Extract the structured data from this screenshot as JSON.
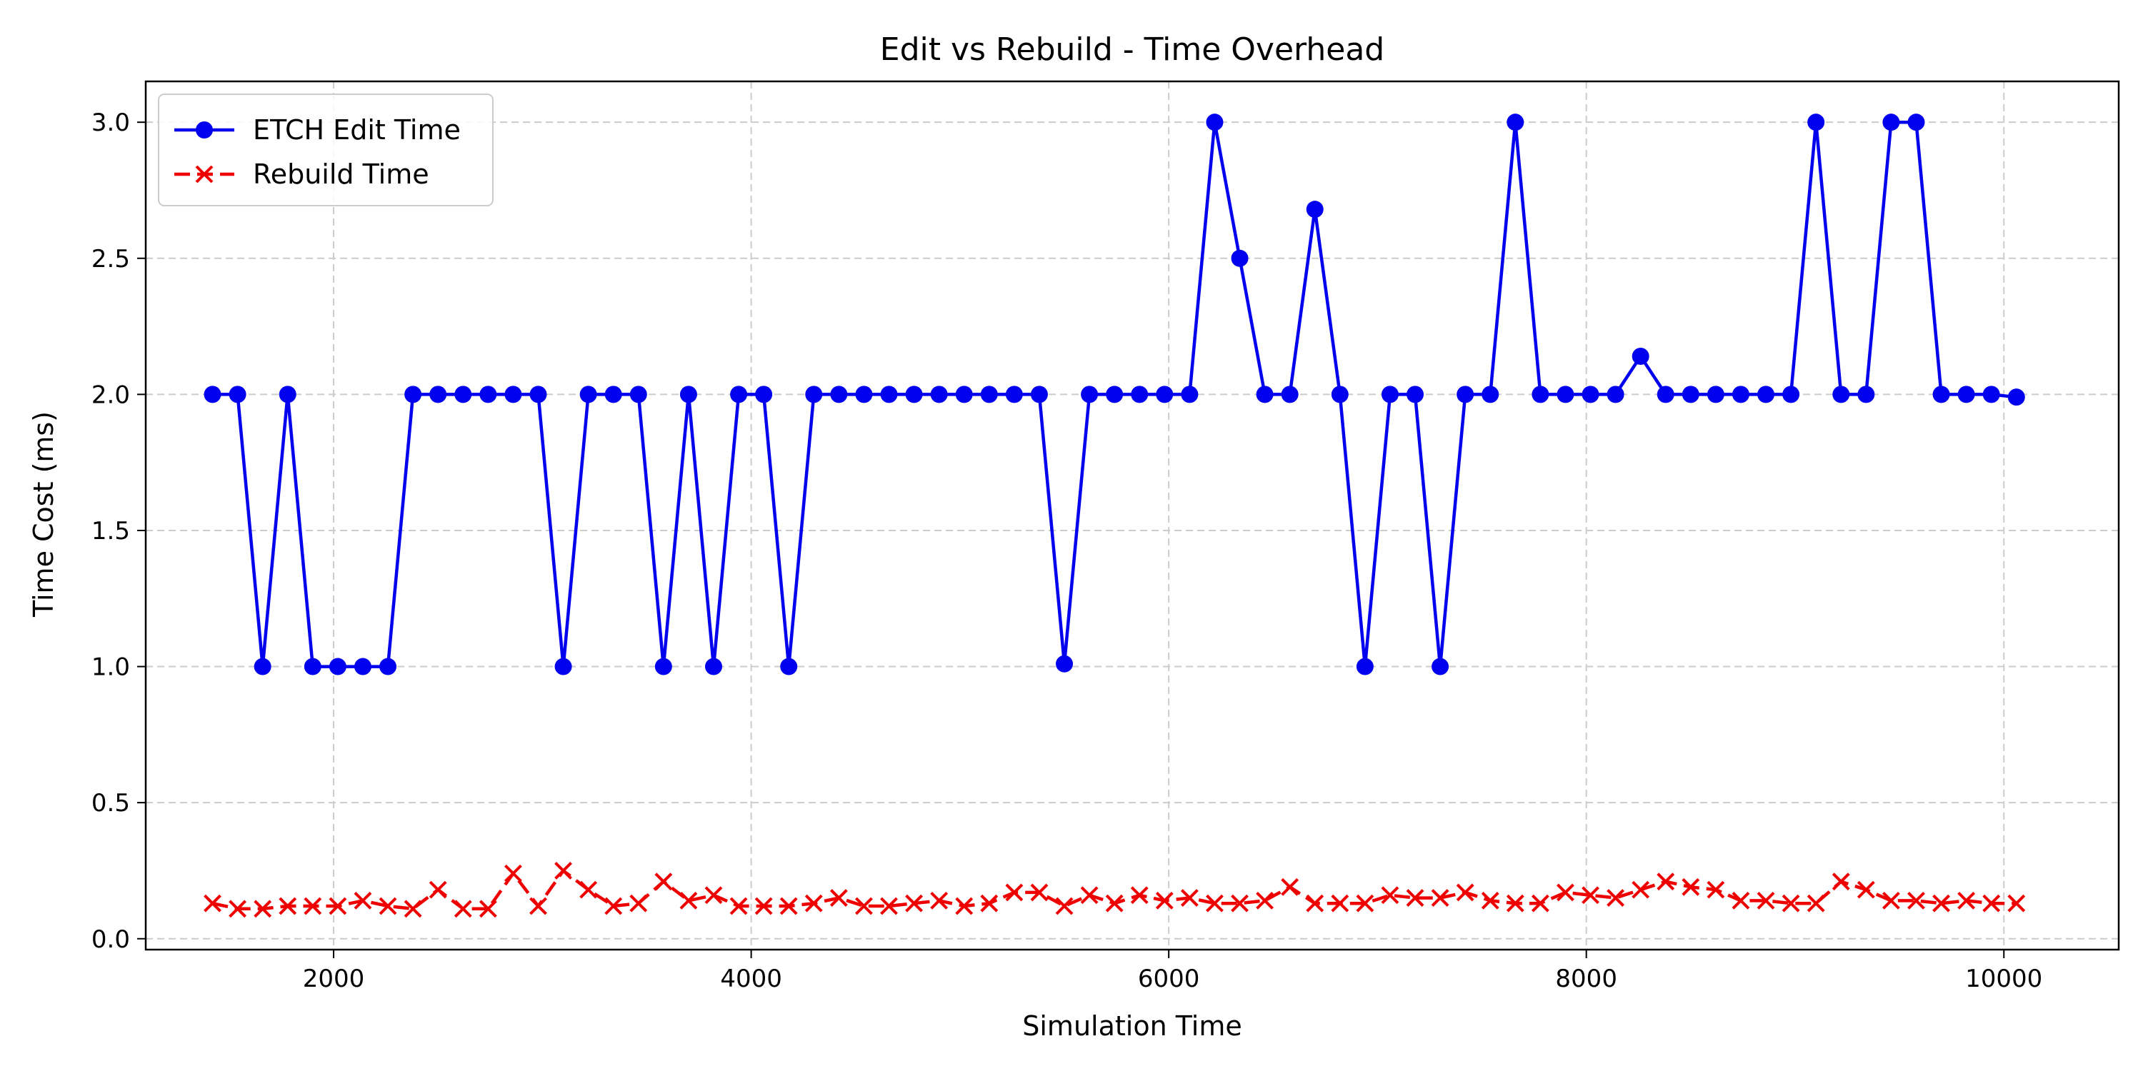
{
  "chart_data": {
    "type": "line",
    "title": "Edit vs Rebuild - Time Overhead",
    "xlabel": "Simulation Time",
    "ylabel": "Time Cost (ms)",
    "xlim": [
      1100,
      10550
    ],
    "ylim": [
      -0.04,
      3.15
    ],
    "xticks": [
      2000,
      4000,
      6000,
      8000,
      10000
    ],
    "yticks": [
      0.0,
      0.5,
      1.0,
      1.5,
      2.0,
      2.5,
      3.0
    ],
    "ytick_labels": [
      "0.0",
      "0.5",
      "1.0",
      "1.5",
      "2.0",
      "2.5",
      "3.0"
    ],
    "grid": true,
    "legend_position": "top-left",
    "x": [
      1420,
      1540,
      1660,
      1780,
      1900,
      2020,
      2140,
      2260,
      2380,
      2500,
      2620,
      2740,
      2860,
      2980,
      3100,
      3220,
      3340,
      3460,
      3580,
      3700,
      3820,
      3940,
      4060,
      4180,
      4300,
      4420,
      4540,
      4660,
      4780,
      4900,
      5020,
      5140,
      5260,
      5380,
      5500,
      5620,
      5740,
      5860,
      5980,
      6100,
      6220,
      6340,
      6460,
      6580,
      6700,
      6820,
      6940,
      7060,
      7180,
      7300,
      7420,
      7540,
      7660,
      7780,
      7900,
      8020,
      8140,
      8260,
      8380,
      8500,
      8620,
      8740,
      8860,
      8980,
      9100,
      9220,
      9340,
      9460,
      9580,
      9700,
      9820,
      9940,
      10060
    ],
    "series": [
      {
        "name": "ETCH Edit Time",
        "color": "#0000ee",
        "marker": "circle",
        "dashed": false,
        "values": [
          2.0,
          2.0,
          1.0,
          2.0,
          1.0,
          1.0,
          1.0,
          1.0,
          2.0,
          2.0,
          2.0,
          2.0,
          2.0,
          2.0,
          1.0,
          2.0,
          2.0,
          2.0,
          1.0,
          2.0,
          1.0,
          2.0,
          2.0,
          1.0,
          2.0,
          2.0,
          2.0,
          2.0,
          2.0,
          2.0,
          2.0,
          2.0,
          2.0,
          2.0,
          1.01,
          2.0,
          2.0,
          2.0,
          2.0,
          2.0,
          3.0,
          2.5,
          2.0,
          2.0,
          2.68,
          2.0,
          1.0,
          2.0,
          2.0,
          1.0,
          2.0,
          2.0,
          3.0,
          2.0,
          2.0,
          2.0,
          2.0,
          2.14,
          2.0,
          2.0,
          2.0,
          2.0,
          2.0,
          2.0,
          3.0,
          2.0,
          2.0,
          3.0,
          3.0,
          2.0,
          2.0,
          2.0,
          1.99
        ]
      },
      {
        "name": "Rebuild Time",
        "color": "#ee0000",
        "marker": "x",
        "dashed": true,
        "values": [
          0.13,
          0.11,
          0.11,
          0.12,
          0.12,
          0.12,
          0.14,
          0.12,
          0.11,
          0.18,
          0.11,
          0.11,
          0.24,
          0.12,
          0.25,
          0.18,
          0.12,
          0.13,
          0.21,
          0.14,
          0.16,
          0.12,
          0.12,
          0.12,
          0.13,
          0.15,
          0.12,
          0.12,
          0.13,
          0.14,
          0.12,
          0.13,
          0.17,
          0.17,
          0.12,
          0.16,
          0.13,
          0.16,
          0.14,
          0.15,
          0.13,
          0.13,
          0.14,
          0.19,
          0.13,
          0.13,
          0.13,
          0.16,
          0.15,
          0.15,
          0.17,
          0.14,
          0.13,
          0.13,
          0.17,
          0.16,
          0.15,
          0.18,
          0.21,
          0.19,
          0.18,
          0.14,
          0.14,
          0.13,
          0.13,
          0.21,
          0.18,
          0.14,
          0.14,
          0.13,
          0.14,
          0.13,
          0.13
        ]
      }
    ]
  }
}
